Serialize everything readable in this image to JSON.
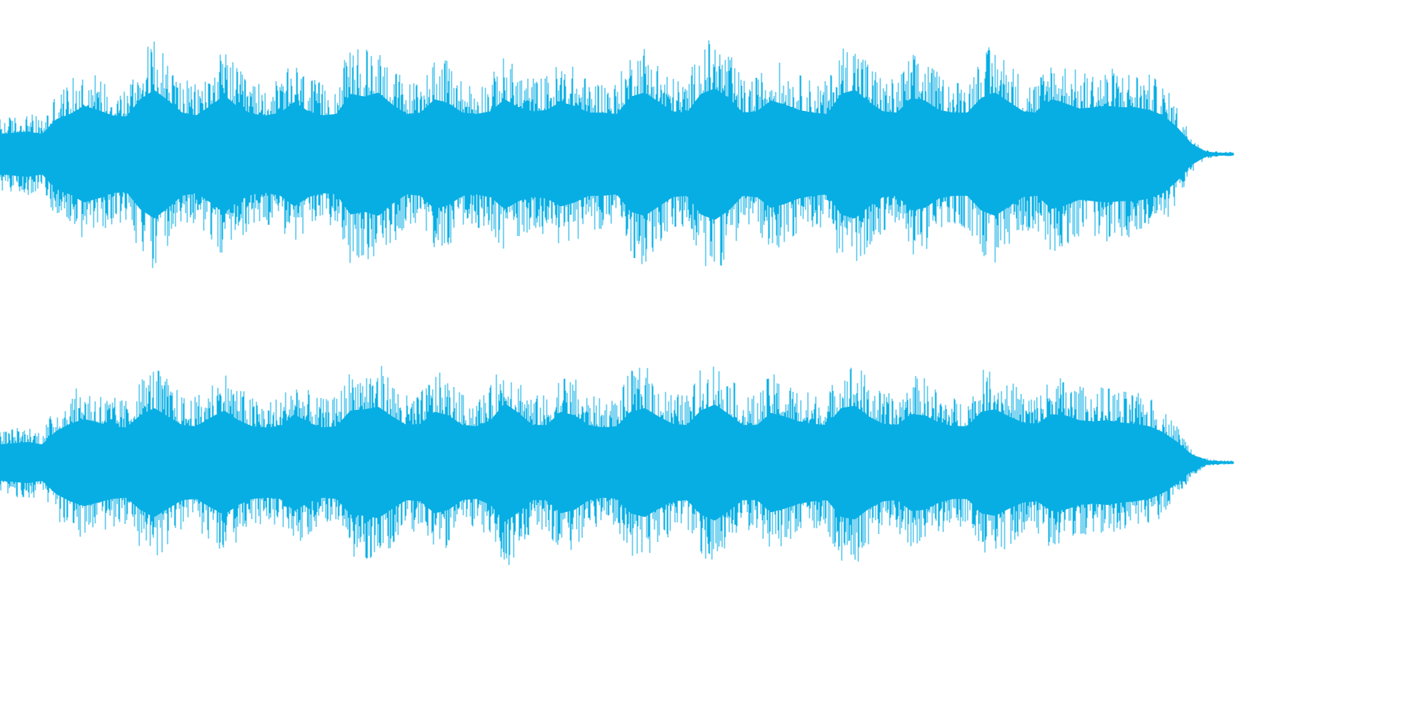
{
  "waveform": {
    "color": "#06aee4",
    "channels": [
      {
        "label": "",
        "envelope": [
          0.3,
          0.32,
          0.34,
          0.3,
          0.52,
          0.6,
          0.72,
          0.66,
          0.58,
          0.56,
          0.82,
          0.96,
          0.8,
          0.62,
          0.58,
          0.72,
          0.88,
          0.7,
          0.6,
          0.58,
          0.62,
          0.78,
          0.64,
          0.58,
          0.6,
          0.9,
          0.86,
          0.92,
          0.74,
          0.6,
          0.62,
          0.82,
          0.76,
          0.62,
          0.6,
          0.64,
          0.82,
          0.7,
          0.64,
          0.66,
          0.78,
          0.72,
          0.62,
          0.62,
          0.6,
          0.86,
          0.92,
          0.78,
          0.64,
          0.62,
          0.9,
          0.98,
          0.84,
          0.62,
          0.64,
          0.8,
          0.74,
          0.66,
          0.62,
          0.6,
          0.9,
          0.96,
          0.78,
          0.64,
          0.62,
          0.84,
          0.8,
          0.66,
          0.62,
          0.62,
          0.84,
          0.92,
          0.78,
          0.64,
          0.62,
          0.82,
          0.76,
          0.68,
          0.7,
          0.72,
          0.7,
          0.7,
          0.66,
          0.58,
          0.4,
          0.16,
          0.04,
          0.02,
          0.02
        ]
      },
      {
        "label": "",
        "envelope": [
          0.3,
          0.32,
          0.34,
          0.3,
          0.52,
          0.64,
          0.72,
          0.66,
          0.6,
          0.58,
          0.78,
          0.9,
          0.76,
          0.62,
          0.6,
          0.74,
          0.86,
          0.7,
          0.6,
          0.58,
          0.6,
          0.8,
          0.66,
          0.58,
          0.6,
          0.86,
          0.88,
          0.92,
          0.76,
          0.62,
          0.64,
          0.84,
          0.78,
          0.62,
          0.6,
          0.7,
          0.98,
          0.82,
          0.62,
          0.62,
          0.84,
          0.78,
          0.62,
          0.58,
          0.6,
          0.84,
          0.9,
          0.76,
          0.64,
          0.62,
          0.86,
          0.96,
          0.8,
          0.62,
          0.62,
          0.82,
          0.76,
          0.68,
          0.64,
          0.62,
          0.9,
          0.94,
          0.76,
          0.64,
          0.62,
          0.8,
          0.78,
          0.66,
          0.6,
          0.6,
          0.84,
          0.88,
          0.76,
          0.66,
          0.64,
          0.8,
          0.78,
          0.7,
          0.68,
          0.7,
          0.66,
          0.64,
          0.6,
          0.5,
          0.34,
          0.14,
          0.04,
          0.02,
          0.02
        ]
      }
    ]
  }
}
